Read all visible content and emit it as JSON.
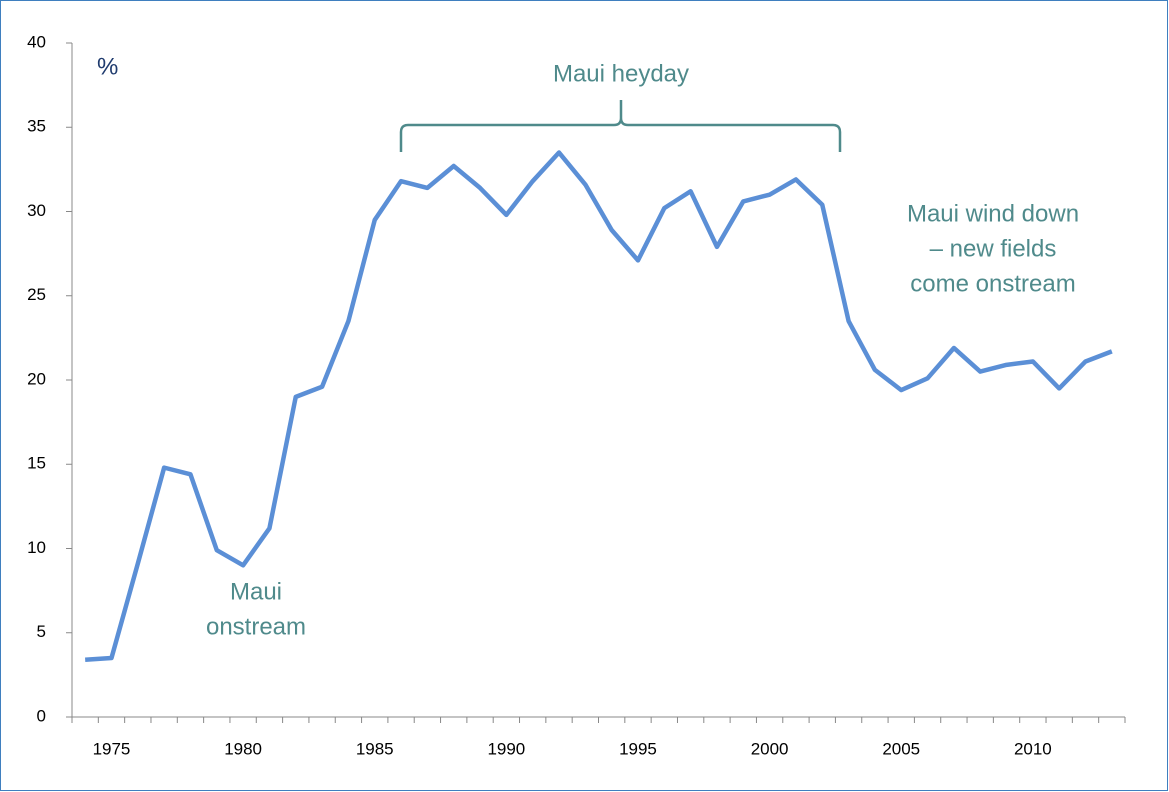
{
  "chart_data": {
    "type": "line",
    "y_label": "%",
    "annotations": [
      {
        "lines": [
          "Maui heyday"
        ]
      },
      {
        "lines": [
          "Maui wind down",
          "– new fields",
          "come onstream"
        ]
      },
      {
        "lines": [
          "Maui",
          "onstream"
        ]
      }
    ],
    "x": [
      1974,
      1975,
      1976,
      1977,
      1978,
      1979,
      1980,
      1981,
      1982,
      1983,
      1984,
      1985,
      1986,
      1987,
      1988,
      1989,
      1990,
      1991,
      1992,
      1993,
      1994,
      1995,
      1996,
      1997,
      1998,
      1999,
      2000,
      2001,
      2002,
      2003,
      2004,
      2005,
      2006,
      2007,
      2008,
      2009,
      2010,
      2011,
      2012,
      2013
    ],
    "series": [
      {
        "color": "#5b8fd6",
        "values": [
          3.4,
          3.5,
          9.1,
          14.8,
          14.4,
          9.9,
          9.0,
          11.2,
          19.0,
          19.6,
          23.5,
          29.5,
          31.8,
          31.4,
          32.7,
          31.4,
          29.8,
          31.8,
          33.5,
          31.6,
          28.9,
          27.1,
          30.2,
          31.2,
          27.9,
          30.6,
          31.0,
          31.9,
          30.4,
          23.5,
          20.6,
          19.4,
          20.1,
          21.9,
          20.5,
          20.9,
          21.1,
          19.5,
          21.1,
          21.7
        ]
      }
    ],
    "xlim": [
      1973.5,
      2013.5
    ],
    "xticks": [
      1975,
      1980,
      1985,
      1990,
      1995,
      2000,
      2005,
      2010
    ],
    "ylim": [
      0,
      40
    ],
    "yticks": [
      0,
      5,
      10,
      15,
      20,
      25,
      30,
      35,
      40
    ]
  }
}
